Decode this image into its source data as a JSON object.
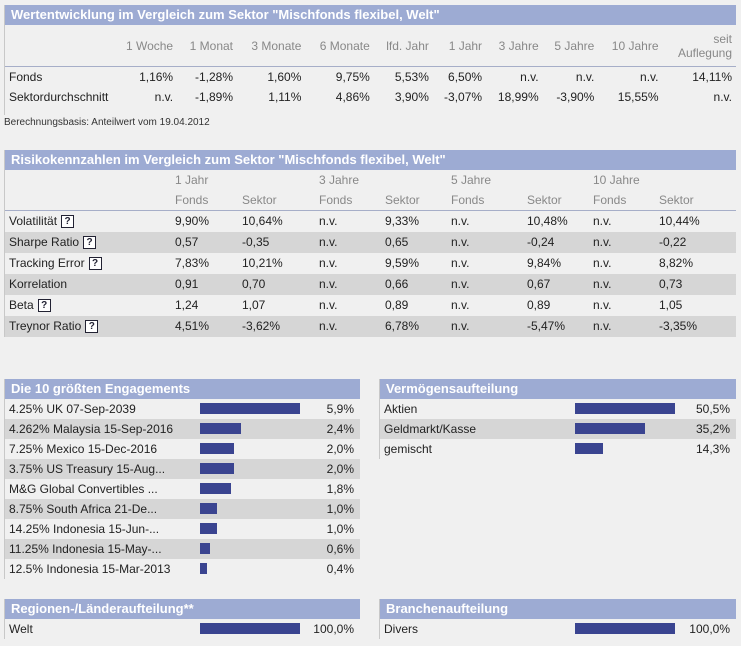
{
  "performance": {
    "title": "Wertentwicklung im Vergleich zum Sektor \"Mischfonds flexibel, Welt\"",
    "columns": [
      "1 Woche",
      "1 Monat",
      "3 Monate",
      "6 Monate",
      "lfd. Jahr",
      "1 Jahr",
      "3 Jahre",
      "5 Jahre",
      "10 Jahre",
      "seit",
      "Auflegung"
    ],
    "rows": [
      {
        "label": "Fonds",
        "values": [
          "1,16%",
          "-1,28%",
          "1,60%",
          "9,75%",
          "5,53%",
          "6,50%",
          "n.v.",
          "n.v.",
          "n.v.",
          "14,11%"
        ]
      },
      {
        "label": "Sektordurchschnitt",
        "values": [
          "n.v.",
          "-1,89%",
          "1,11%",
          "4,86%",
          "3,90%",
          "-3,07%",
          "18,99%",
          "-3,90%",
          "15,55%",
          "n.v."
        ]
      }
    ],
    "note": "Berechnungsbasis: Anteilwert vom 19.04.2012"
  },
  "risk": {
    "title": "Risikokennzahlen im Vergleich zum Sektor \"Mischfonds flexibel, Welt\"",
    "periods": [
      "1 Jahr",
      "3 Jahre",
      "5 Jahre",
      "10 Jahre"
    ],
    "subcols": [
      "Fonds",
      "Sektor"
    ],
    "help_label": "?",
    "rows": [
      {
        "label": "Volatilität",
        "values": [
          "9,90%",
          "10,64%",
          "n.v.",
          "9,33%",
          "n.v.",
          "10,48%",
          "n.v.",
          "10,44%"
        ]
      },
      {
        "label": "Sharpe Ratio",
        "values": [
          "0,57",
          "-0,35",
          "n.v.",
          "0,65",
          "n.v.",
          "-0,24",
          "n.v.",
          "-0,22"
        ]
      },
      {
        "label": "Tracking Error",
        "values": [
          "7,83%",
          "10,21%",
          "n.v.",
          "9,59%",
          "n.v.",
          "9,84%",
          "n.v.",
          "8,82%"
        ]
      },
      {
        "label": "Korrelation",
        "values": [
          "0,91",
          "0,70",
          "n.v.",
          "0,66",
          "n.v.",
          "0,67",
          "n.v.",
          "0,73"
        ]
      },
      {
        "label": "Beta",
        "values": [
          "1,24",
          "1,07",
          "n.v.",
          "0,89",
          "n.v.",
          "0,89",
          "n.v.",
          "1,05"
        ]
      },
      {
        "label": "Treynor Ratio",
        "values": [
          "4,51%",
          "-3,62%",
          "n.v.",
          "6,78%",
          "n.v.",
          "-5,47%",
          "n.v.",
          "-3,35%"
        ]
      }
    ]
  },
  "top10": {
    "title": "Die 10 größten Engagements",
    "items": [
      {
        "label": "4.25% UK 07-Sep-2039",
        "value": "5,9%",
        "pct": 5.9
      },
      {
        "label": "4.262% Malaysia 15-Sep-2016",
        "value": "2,4%",
        "pct": 2.4
      },
      {
        "label": "7.25% Mexico 15-Dec-2016",
        "value": "2,0%",
        "pct": 2.0
      },
      {
        "label": "3.75% US Treasury 15-Aug...",
        "value": "2,0%",
        "pct": 2.0
      },
      {
        "label": "M&G Global Convertibles ...",
        "value": "1,8%",
        "pct": 1.8
      },
      {
        "label": "8.75% South Africa 21-De...",
        "value": "1,0%",
        "pct": 1.0
      },
      {
        "label": "14.25% Indonesia 15-Jun-...",
        "value": "1,0%",
        "pct": 1.0
      },
      {
        "label": "11.25% Indonesia 15-May-...",
        "value": "0,6%",
        "pct": 0.6
      },
      {
        "label": "12.5% Indonesia 15-Mar-2013",
        "value": "0,4%",
        "pct": 0.4
      }
    ]
  },
  "assets": {
    "title": "Vermögensaufteilung",
    "items": [
      {
        "label": "Aktien",
        "value": "50,5%",
        "pct": 50.5
      },
      {
        "label": "Geldmarkt/Kasse",
        "value": "35,2%",
        "pct": 35.2
      },
      {
        "label": "gemischt",
        "value": "14,3%",
        "pct": 14.3
      }
    ]
  },
  "regions": {
    "title": "Regionen-/Länderaufteilung**",
    "items": [
      {
        "label": "Welt",
        "value": "100,0%",
        "pct": 100
      }
    ]
  },
  "sectors": {
    "title": "Branchenaufteilung",
    "items": [
      {
        "label": "Divers",
        "value": "100,0%",
        "pct": 100
      }
    ]
  },
  "colors": {
    "header_bg": "#9dabd3",
    "bar": "#3a4490",
    "alt_row": "#d6d6d6"
  }
}
